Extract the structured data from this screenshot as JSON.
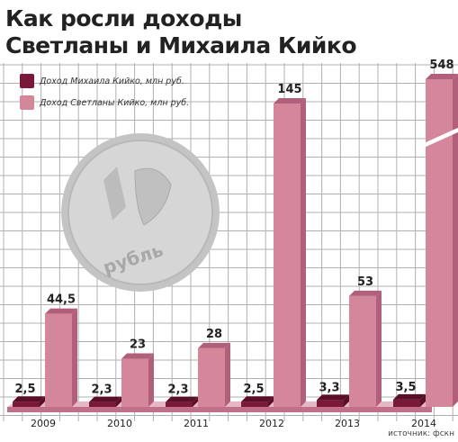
{
  "colors": {
    "mikhail": "#7a1838",
    "mikhail_side": "#5a0f28",
    "svetlana": "#d4869a",
    "svetlana_side": "#b0607a",
    "grid": "#b0b0b0",
    "coin": "#c8c8c8"
  },
  "chart_data": {
    "type": "bar",
    "title": "Как росли доходы Светланы и Михаила Кийко",
    "title_lines": [
      "Как росли доходы",
      "Светланы и Михаила Кийко"
    ],
    "categories": [
      "2009",
      "2010",
      "2011",
      "2012",
      "2013",
      "2014"
    ],
    "series": [
      {
        "name": "Доход Михаила Кийко, млн руб.",
        "values": [
          2.5,
          2.3,
          2.3,
          2.5,
          3.3,
          3.5
        ],
        "labels": [
          "2,5",
          "2,3",
          "2,3",
          "2,5",
          "3,3",
          "3,5"
        ]
      },
      {
        "name": "Доход Светланы Кийко, млн руб.",
        "values": [
          44.5,
          23,
          28,
          145,
          53,
          548
        ],
        "labels": [
          "44,5",
          "23",
          "28",
          "145",
          "53",
          "548"
        ]
      }
    ],
    "axis_break_on": "2014",
    "xlabel": "",
    "ylabel": "",
    "grid": true,
    "legend": "top-left",
    "source": "источник: фскн",
    "decoration": "рубль"
  }
}
